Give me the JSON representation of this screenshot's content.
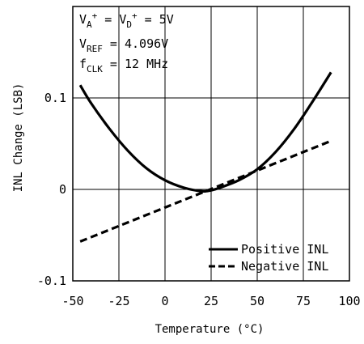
{
  "chart_data": {
    "type": "line",
    "xlabel": "Temperature (°C)",
    "ylabel": "INL Change (LSB)",
    "xlim": [
      -50,
      100
    ],
    "ylim": [
      -0.1,
      0.2
    ],
    "x_ticks": [
      -50,
      -25,
      0,
      25,
      50,
      75,
      100
    ],
    "x_tick_labels": [
      "-50",
      "-25",
      "0",
      "25",
      "50",
      "75",
      "100"
    ],
    "y_ticks": [
      -0.1,
      0,
      0.1
    ],
    "y_tick_labels": [
      "-0.1",
      "0",
      "0.1"
    ],
    "grid": true,
    "legend_position": "bottom-right",
    "annotations": {
      "line1": {
        "main": "V",
        "sub1": "A",
        "sup1": "+",
        "mid": " = V",
        "sub2": "D",
        "sup2": "+",
        "end": " = 5V"
      },
      "line2": {
        "main": "V",
        "sub": "REF",
        "end": " = 4.096V"
      },
      "line3": {
        "main": "f",
        "sub": "CLK",
        "end": " = 12 MHz"
      }
    },
    "series": [
      {
        "name": "Positive INL",
        "style": "solid",
        "x": [
          -46,
          -40,
          -30,
          -20,
          -10,
          0,
          10,
          20,
          25,
          30,
          40,
          50,
          60,
          70,
          80,
          90
        ],
        "y": [
          0.114,
          0.094,
          0.066,
          0.042,
          0.023,
          0.01,
          0.002,
          -0.002,
          -0.001,
          0.002,
          0.01,
          0.022,
          0.041,
          0.066,
          0.096,
          0.128
        ]
      },
      {
        "name": "Negative INL",
        "style": "dashed",
        "x": [
          -46,
          90
        ],
        "y": [
          -0.057,
          0.053
        ]
      }
    ]
  }
}
